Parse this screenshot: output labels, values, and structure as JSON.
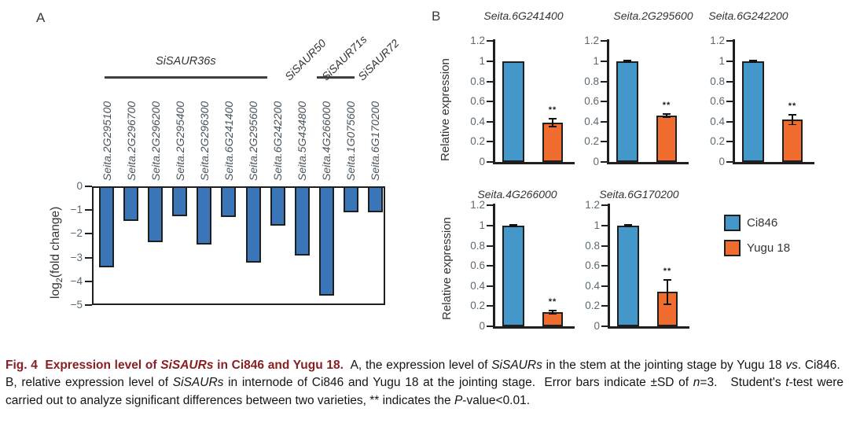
{
  "panel_labels": {
    "a": "A",
    "b": "B"
  },
  "colors": {
    "panel_a_bar": "#3b76b8",
    "ci846_blue": "#4497c9",
    "yugu_orange": "#f06c2f",
    "bar_border": "#1f1f1f",
    "axis_text": "#5a6a75",
    "gene_label_text": "#4a545c",
    "group_label_text": "#333333",
    "caption_red": "#8a1f23"
  },
  "chart_data": [
    {
      "id": "panel-a",
      "type": "bar",
      "title": "",
      "xlabel": "",
      "ylabel": "log2(fold change)",
      "ylabel_parts": [
        "log",
        "2",
        "(fold change)"
      ],
      "ylim": [
        -5,
        0
      ],
      "grid": false,
      "ytick_values": [
        0,
        -1,
        -2,
        -3,
        -4,
        -5
      ],
      "ytick_labels": [
        "0",
        "−1",
        "−2",
        "−3",
        "−4",
        "−5"
      ],
      "categories": [
        "Seita.2G295100",
        "Seita.2G296700",
        "Seita.2G296200",
        "Seita.2G295400",
        "Seita.2G296300",
        "Seita.6G241400",
        "Seita.2G295600",
        "Seita.6G242200",
        "Seita.5G434800",
        "Seita.4G266000",
        "Seita.1G075600",
        "Seita.6G170200"
      ],
      "values": [
        -3.4,
        -1.45,
        -2.35,
        -1.25,
        -2.45,
        -1.3,
        -3.2,
        -1.65,
        -2.9,
        -4.6,
        -1.1,
        -1.1
      ],
      "groups": [
        {
          "label": "SiSAUR36s",
          "first": 0,
          "last": 7,
          "rotated": false,
          "underline": true
        },
        {
          "label": "SiSAUR50",
          "first": 8,
          "last": 8,
          "rotated": true,
          "underline": false
        },
        {
          "label": "SiSAUR71s",
          "first": 9,
          "last": 10,
          "rotated": true,
          "underline": true
        },
        {
          "label": "SiSAUR72",
          "first": 11,
          "last": 11,
          "rotated": true,
          "underline": false
        }
      ]
    },
    {
      "id": "panel-b-1",
      "type": "bar",
      "title": "Seita.6G241400",
      "ylabel": "Relative expression",
      "ylim": [
        0,
        1.2
      ],
      "ytick_values": [
        0,
        0.2,
        0.4,
        0.6,
        0.8,
        1,
        1.2
      ],
      "ytick_labels": [
        "0",
        "0.2",
        "0.4",
        "0.6",
        "0.8",
        "1",
        "1.2"
      ],
      "categories": [
        "Ci846",
        "Yugu 18"
      ],
      "values": [
        1,
        0.39
      ],
      "errors": [
        0,
        0.04
      ],
      "sig": [
        "",
        "**"
      ]
    },
    {
      "id": "panel-b-2",
      "type": "bar",
      "title": "Seita.2G295600",
      "ylabel": "Relative expression",
      "ylim": [
        0,
        1.2
      ],
      "ytick_values": [
        0,
        0.2,
        0.4,
        0.6,
        0.8,
        1,
        1.2
      ],
      "ytick_labels": [
        "0",
        "0.2",
        "0.4",
        "0.6",
        "0.8",
        "1",
        "1.2"
      ],
      "categories": [
        "Ci846",
        "Yugu 18"
      ],
      "values": [
        1,
        0.46
      ],
      "errors": [
        0.01,
        0.015
      ],
      "sig": [
        "",
        "**"
      ]
    },
    {
      "id": "panel-b-3",
      "type": "bar",
      "title": "Seita.6G242200",
      "ylabel": "Relative expression",
      "ylim": [
        0,
        1.2
      ],
      "ytick_values": [
        0,
        0.2,
        0.4,
        0.6,
        0.8,
        1,
        1.2
      ],
      "ytick_labels": [
        "0",
        "0.2",
        "0.4",
        "0.6",
        "0.8",
        "1",
        "1.2"
      ],
      "categories": [
        "Ci846",
        "Yugu 18"
      ],
      "values": [
        1,
        0.42
      ],
      "errors": [
        0.01,
        0.05
      ],
      "sig": [
        "",
        "**"
      ]
    },
    {
      "id": "panel-b-4",
      "type": "bar",
      "title": "Seita.4G266000",
      "ylabel": "Relative expression",
      "ylim": [
        0,
        1.2
      ],
      "ytick_values": [
        0,
        0.2,
        0.4,
        0.6,
        0.8,
        1,
        1.2
      ],
      "ytick_labels": [
        "0",
        "0.2",
        "0.4",
        "0.6",
        "0.8",
        "1",
        "1.2"
      ],
      "categories": [
        "Ci846",
        "Yugu 18"
      ],
      "values": [
        1,
        0.14
      ],
      "errors": [
        0.01,
        0.02
      ],
      "sig": [
        "",
        "**"
      ]
    },
    {
      "id": "panel-b-5",
      "type": "bar",
      "title": "Seita.6G170200",
      "ylabel": "Relative expression",
      "ylim": [
        0,
        1.2
      ],
      "ytick_values": [
        0,
        0.2,
        0.4,
        0.6,
        0.8,
        1,
        1.2
      ],
      "ytick_labels": [
        "0",
        "0.2",
        "0.4",
        "0.6",
        "0.8",
        "1",
        "1.2"
      ],
      "categories": [
        "Ci846",
        "Yugu 18"
      ],
      "values": [
        1,
        0.34
      ],
      "errors": [
        0.01,
        0.12
      ],
      "sig": [
        "",
        "**"
      ]
    }
  ],
  "legend": {
    "entries": [
      {
        "label": "Ci846",
        "color": "#4497c9"
      },
      {
        "label": "Yugu 18",
        "color": "#f06c2f"
      }
    ]
  },
  "caption": {
    "segments": [
      {
        "t": "Fig. 4  Expression level of ",
        "b": 1,
        "c": 1
      },
      {
        "t": "SiSAURs",
        "b": 1,
        "i": 1,
        "c": 1
      },
      {
        "t": " in Ci846 and Yugu 18.",
        "b": 1,
        "c": 1
      },
      {
        "t": "  A, the expression level of "
      },
      {
        "t": "SiSAURs",
        "i": 1
      },
      {
        "t": " in the stem at the jointing stage by Yugu 18 "
      },
      {
        "t": "vs",
        "i": 1
      },
      {
        "t": ". Ci846.  B, relative expression level of "
      },
      {
        "t": "SiSAURs",
        "i": 1
      },
      {
        "t": " in internode of Ci846 and Yugu 18 at the jointing stage.  Error bars indicate ±SD of "
      },
      {
        "t": "n",
        "i": 1
      },
      {
        "t": "=3.   Student's "
      },
      {
        "t": "t",
        "i": 1
      },
      {
        "t": "-test were carried out to analyze significant differences between two varieties, ** indicates the "
      },
      {
        "t": "P",
        "i": 1
      },
      {
        "t": "-value<0.01."
      }
    ]
  }
}
